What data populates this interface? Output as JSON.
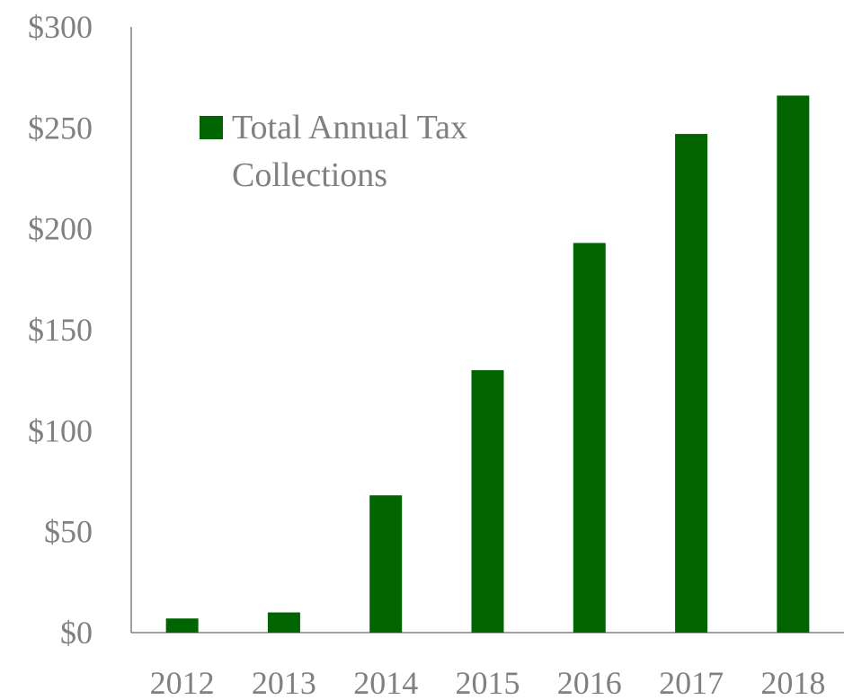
{
  "chart_data": {
    "type": "bar",
    "title": "",
    "xlabel": "",
    "ylabel": "",
    "categories": [
      "2012",
      "2013",
      "2014",
      "2015",
      "2016",
      "2017",
      "2018"
    ],
    "series": [
      {
        "name": "Total Annual Tax Collections",
        "values": [
          7,
          10,
          68,
          130,
          193,
          247,
          266
        ],
        "color": "#006400"
      }
    ],
    "ylim": [
      0,
      300
    ],
    "yticks": [
      0,
      50,
      100,
      150,
      200,
      250,
      300
    ],
    "ytick_labels": [
      "$0",
      "$50",
      "$100",
      "$150",
      "$200",
      "$250",
      "$300"
    ],
    "grid": false,
    "legend": {
      "position": "top-left",
      "lines": [
        "Total Annual Tax",
        "Collections"
      ]
    },
    "axis_color": "#808080",
    "label_color": "#808080"
  }
}
